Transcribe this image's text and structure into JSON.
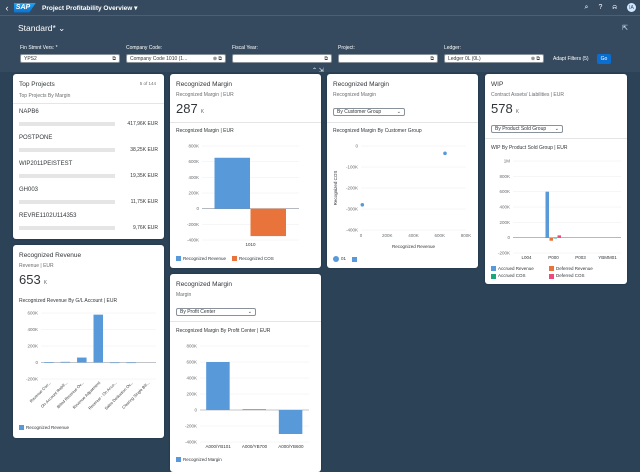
{
  "shell": {
    "title": "Project Profitability Overview",
    "avatar": "IA",
    "logo_text": "SAP"
  },
  "header": {
    "variant": "Standard*"
  },
  "filters": [
    {
      "label": "Fin Stmnt Vers: *",
      "value": "YPS2"
    },
    {
      "label": "Company Code:",
      "value": "Company Code 1010 (1..."
    },
    {
      "label": "Fiscal Year:",
      "value": ""
    },
    {
      "label": "Project:",
      "value": ""
    },
    {
      "label": "Ledger:",
      "value": "Ledger 0L (0L)"
    }
  ],
  "adapt_filters": "Adapt Filters (5)",
  "go": "Go",
  "top_projects": {
    "title": "Top Projects",
    "count": "5 of 144",
    "subtitle": "Top Projects By Margin",
    "items": [
      {
        "name": "NAPB6",
        "value": "417,96K EUR"
      },
      {
        "name": "POSTPONE",
        "value": "38,25K EUR"
      },
      {
        "name": "WIP2011PEISTEST",
        "value": "19,35K EUR"
      },
      {
        "name": "GH003",
        "value": "11,75K EUR"
      },
      {
        "name": "REVRE1102U114353",
        "value": "9,76K EUR"
      }
    ]
  },
  "recognized_revenue": {
    "title": "Recognized Revenue",
    "subtitle": "Revenue | EUR",
    "kpi": "653",
    "unit": "K",
    "chart_title": "Recognized Revenue By G/L Account | EUR",
    "legend": "Recognized Revenue"
  },
  "margin_card": {
    "title": "Recognized Margin",
    "subtitle": "Recognized Margin | EUR",
    "kpi": "287",
    "unit": "K",
    "chart_title": "Recognized Margin | EUR",
    "legend": [
      "Recognized Revenue",
      "Recognized COS"
    ]
  },
  "margin_customer": {
    "title": "Recognized Margin",
    "subtitle": "Recognized Margin",
    "dropdown": "By Customer Group",
    "chart_title": "Recognized Margin By Customer Group",
    "legend": "01"
  },
  "wip": {
    "title": "WIP",
    "subtitle": "Contract Assets/ Liabilities | EUR",
    "kpi": "578",
    "unit": "K",
    "dropdown": "By Product Sold Group",
    "chart_title": "WIP By Product Sold Group | EUR",
    "legend": [
      "Accrued Revenue",
      "Deferred Revenue",
      "Accrued COS",
      "Deferred COS"
    ]
  },
  "margin_profit": {
    "title": "Recognized Margin",
    "subtitle": "Margin",
    "dropdown": "By Profit Center",
    "chart_title": "Recognized Margin By Profit Center | EUR",
    "legend": "Recognized Margin"
  },
  "chart_data": [
    {
      "type": "bar",
      "title": "Recognized Margin | EUR",
      "categories": [
        "1010"
      ],
      "series": [
        {
          "name": "Recognized Revenue",
          "values": [
            650000
          ]
        },
        {
          "name": "Recognized COS",
          "values": [
            -350000
          ]
        }
      ],
      "yticks": [
        "800K",
        "600K",
        "400K",
        "200K",
        "0",
        "-200K",
        "-400K"
      ],
      "ylim": [
        -400000,
        800000
      ],
      "colors": [
        "#5899da",
        "#e8743b"
      ]
    },
    {
      "type": "scatter",
      "title": "Recognized Margin By Customer Group",
      "xlabel": "Recognized Revenue",
      "ylabel": "Recognized COS",
      "xticks": [
        "0",
        "200K",
        "400K",
        "600K",
        "800K"
      ],
      "yticks": [
        "0",
        "-100K",
        "-200K",
        "-300K",
        "-400K"
      ],
      "xlim": [
        0,
        800000
      ],
      "ylim": [
        -400000,
        0
      ],
      "series": [
        {
          "name": "01",
          "points": [
            [
              10000,
              -280000
            ],
            [
              640000,
              -35000
            ]
          ]
        }
      ],
      "colors": [
        "#5899da"
      ]
    },
    {
      "type": "bar",
      "title": "WIP By Product Sold Group | EUR",
      "categories": [
        "L004",
        "P000",
        "P003",
        "YBMM01"
      ],
      "yticks": [
        "1M",
        "800K",
        "600K",
        "400K",
        "200K",
        "0",
        "-200K"
      ],
      "ylim": [
        -200000,
        1000000
      ],
      "series": [
        {
          "name": "Accrued Revenue",
          "values": [
            0,
            600000,
            0,
            0
          ]
        },
        {
          "name": "Deferred Revenue",
          "values": [
            0,
            -40000,
            0,
            0
          ]
        },
        {
          "name": "Accrued COS",
          "values": [
            0,
            -10000,
            0,
            0
          ]
        },
        {
          "name": "Deferred COS",
          "values": [
            0,
            30000,
            0,
            0
          ]
        }
      ],
      "colors": [
        "#5899da",
        "#e8743b",
        "#19a979",
        "#ed4a7b"
      ]
    },
    {
      "type": "bar",
      "title": "Recognized Revenue By G/L Account | EUR",
      "categories": [
        "Revenue Corr...",
        "On-Account Rebill...",
        "Billed Revenue Ov...",
        "Revenue Adjustment",
        "Revenue - On Acco...",
        "Sales Deduction Ov...",
        "Clearing Single Bill..."
      ],
      "yticks": [
        "600K",
        "400K",
        "200K",
        "0",
        "-200K"
      ],
      "ylim": [
        -200000,
        600000
      ],
      "series": [
        {
          "name": "Recognized Revenue",
          "values": [
            5000,
            8000,
            60000,
            580000,
            -5000,
            -3000,
            0
          ]
        }
      ],
      "colors": [
        "#5899da"
      ]
    },
    {
      "type": "bar",
      "title": "Recognized Margin By Profit Center | EUR",
      "categories": [
        "A000/YB101",
        "A000/YB700",
        "A000/YB600"
      ],
      "yticks": [
        "800K",
        "600K",
        "400K",
        "200K",
        "0",
        "-200K",
        "-400K"
      ],
      "ylim": [
        -400000,
        800000
      ],
      "series": [
        {
          "name": "Recognized Margin",
          "values": [
            600000,
            10000,
            -300000
          ]
        }
      ],
      "colors": [
        "#5899da"
      ]
    }
  ]
}
